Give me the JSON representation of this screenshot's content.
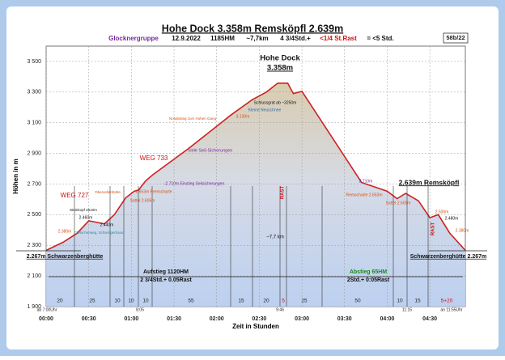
{
  "header": {
    "title": "Hohe Dock 3.358m Remsköpfl 2.639m",
    "subtitle": [
      "Glocknergruppe",
      "12.9.2022",
      "1185HM",
      "~7,7km",
      "4 3/4Std.+",
      "<1/4 St.Rast",
      "= <5 Std."
    ],
    "badge": "58b/22"
  },
  "chart_data": {
    "type": "area",
    "x_label": "Zeit in Stunden",
    "y_label": "Höhen in m",
    "x": [
      0,
      12,
      22,
      30,
      41,
      48,
      56,
      62,
      65,
      70,
      75,
      100,
      130,
      145,
      155,
      163,
      170,
      174,
      180,
      222,
      240,
      247,
      253,
      262,
      270,
      276,
      284,
      295
    ],
    "values": [
      2267,
      2320,
      2380,
      2460,
      2440,
      2500,
      2610,
      2653,
      2660,
      2720,
      2760,
      2930,
      3150,
      3250,
      3300,
      3358,
      3358,
      3290,
      3305,
      2710,
      2653,
      2605,
      2639,
      2590,
      2480,
      2500,
      2380,
      2267
    ],
    "color": "#cc2222",
    "xlim": [
      0,
      295
    ],
    "xticks": [
      {
        "value": 0,
        "label": "00:00"
      },
      {
        "value": 30,
        "label": "00:30"
      },
      {
        "value": 60,
        "label": "01:00"
      },
      {
        "value": 90,
        "label": "01:30"
      },
      {
        "value": 120,
        "label": "02:00"
      },
      {
        "value": 150,
        "label": "02:30"
      },
      {
        "value": 180,
        "label": "03:00"
      },
      {
        "value": 210,
        "label": "03:30"
      },
      {
        "value": 240,
        "label": "04:00"
      },
      {
        "value": 270,
        "label": "04:30"
      }
    ],
    "ylim": [
      1900,
      3600
    ],
    "yticks": [
      {
        "value": 1900,
        "label": "1 900"
      },
      {
        "value": 2100,
        "label": "2 100"
      },
      {
        "value": 2300,
        "label": "2 300"
      },
      {
        "value": 2500,
        "label": "2 500"
      },
      {
        "value": 2700,
        "label": "2 700"
      },
      {
        "value": 2900,
        "label": "2 900"
      },
      {
        "value": 3100,
        "label": "3 100"
      },
      {
        "value": 3300,
        "label": "3 300"
      },
      {
        "value": 3500,
        "label": "3 500"
      }
    ],
    "grid": true,
    "segments": [
      "20",
      "25",
      "10",
      "10",
      "10",
      "55",
      "15",
      "20",
      "5",
      "25",
      "50",
      "10",
      "15",
      "5+20"
    ],
    "times": [
      "ab 7:00Uhr",
      "8:05",
      "9:46",
      "11:15",
      "an 11:55Uhr"
    ],
    "annotations": [
      "Hohe Dock",
      "3.358m",
      "2.639m Remsköpfl",
      "WEG 733",
      "WEG 727",
      "viele Seil-Sicherungen",
      "2.267m Schwarzenberghütte",
      "Schwarzenberghütte 2.267m",
      "Aufstieg 1120HM",
      "2 3/4Std.+ 0.05Rast",
      "Abstieg 65HM",
      "2Std.+ 0:05Rast",
      "~7,7 km",
      "RAST",
      "RAST",
      "2.380m",
      "2.460m",
      "2.440m",
      "2.653m Remscharte",
      "Sattel 2.605m",
      "-2.710m Einstieg Seilsicherungen",
      "3.130m",
      "Schlussgrat ab ~3250m",
      "Kleine Neuschnee",
      "2.710m",
      "Remscharte 2.653m",
      "Sattel 2.605m",
      "2.500m",
      "2.480m",
      "2.380m",
      "Obervellenhütte",
      "Steinkopf 2610m",
      "Notabstieg zum Hohen Gang",
      "Gletscherweg, Schwingerhaus"
    ]
  }
}
